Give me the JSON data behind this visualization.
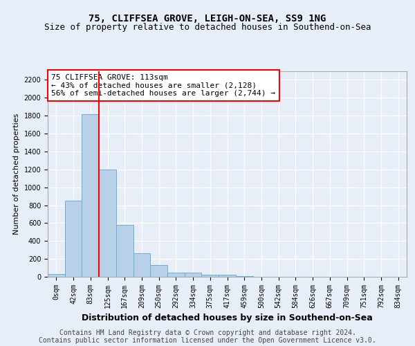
{
  "title": "75, CLIFFSEA GROVE, LEIGH-ON-SEA, SS9 1NG",
  "subtitle": "Size of property relative to detached houses in Southend-on-Sea",
  "xlabel": "Distribution of detached houses by size in Southend-on-Sea",
  "ylabel": "Number of detached properties",
  "footnote1": "Contains HM Land Registry data © Crown copyright and database right 2024.",
  "footnote2": "Contains public sector information licensed under the Open Government Licence v3.0.",
  "annotation_line1": "75 CLIFFSEA GROVE: 113sqm",
  "annotation_line2": "← 43% of detached houses are smaller (2,128)",
  "annotation_line3": "56% of semi-detached houses are larger (2,744) →",
  "bar_labels": [
    "0sqm",
    "42sqm",
    "83sqm",
    "125sqm",
    "167sqm",
    "209sqm",
    "250sqm",
    "292sqm",
    "334sqm",
    "375sqm",
    "417sqm",
    "459sqm",
    "500sqm",
    "542sqm",
    "584sqm",
    "626sqm",
    "667sqm",
    "709sqm",
    "751sqm",
    "792sqm",
    "834sqm"
  ],
  "bar_values": [
    30,
    850,
    1820,
    1200,
    580,
    260,
    135,
    50,
    45,
    25,
    20,
    10,
    0,
    0,
    0,
    0,
    0,
    0,
    0,
    0,
    0
  ],
  "bar_color": "#b8d0e8",
  "bar_edge_color": "#6aaed6",
  "vline_position": 2.5,
  "vline_color": "red",
  "ylim": [
    0,
    2300
  ],
  "yticks": [
    0,
    200,
    400,
    600,
    800,
    1000,
    1200,
    1400,
    1600,
    1800,
    2000,
    2200
  ],
  "bg_color": "#e8eef8",
  "plot_bg_color": "#e8eef8",
  "grid_color": "#ffffff",
  "title_fontsize": 10,
  "subtitle_fontsize": 9,
  "axis_label_fontsize": 8,
  "tick_fontsize": 7,
  "annotation_fontsize": 8,
  "footnote_fontsize": 7
}
